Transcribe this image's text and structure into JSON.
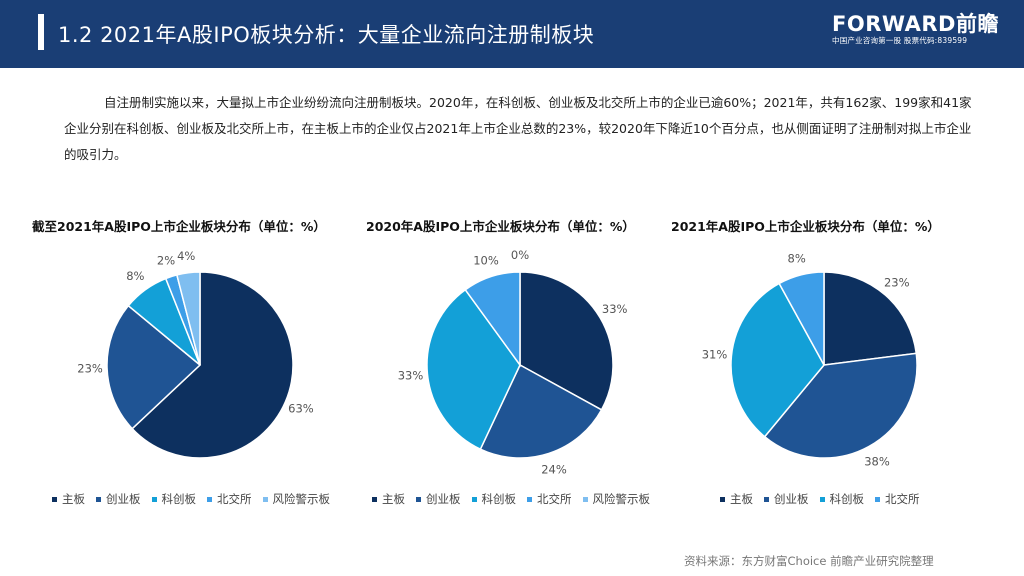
{
  "header": {
    "title": "1.2 2021年A股IPO板块分析：大量企业流向注册制板块",
    "logo_brand": "FORWARD前瞻",
    "logo_tagline": "中国产业咨询第一股 股票代码:839599"
  },
  "intro": "自注册制实施以来，大量拟上市企业纷纷流向注册制板块。2020年，在科创板、创业板及北交所上市的企业已逾60%；2021年，共有162家、199家和41家企业分别在科创板、创业板及北交所上市，在主板上市的企业仅占2021年上市企业总数的23%，较2020年下降近10个百分点，也从侧面证明了注册制对拟上市企业的吸引力。",
  "source": "资料来源：东方财富Choice 前瞻产业研究院整理",
  "colors": {
    "主板": "#0d305f",
    "创业板": "#1f5494",
    "科创板": "#13a0d7",
    "北交所": "#3d9ee8",
    "风险警示板": "#7fbef0"
  },
  "chart_data": [
    {
      "type": "pie",
      "title": "截至2021年A股IPO上市企业板块分布（单位：%）",
      "labels": [
        "主板",
        "创业板",
        "科创板",
        "北交所",
        "风险警示板"
      ],
      "values": [
        63,
        23,
        8,
        2,
        4
      ],
      "legend": [
        "主板",
        "创业板",
        "科创板",
        "北交所",
        "风险警示板"
      ]
    },
    {
      "type": "pie",
      "title": "2020年A股IPO上市企业板块分布（单位：%）",
      "labels": [
        "主板",
        "创业板",
        "科创板",
        "北交所",
        "风险警示板"
      ],
      "values": [
        33,
        24,
        33,
        10,
        0
      ],
      "legend": [
        "主板",
        "创业板",
        "科创板",
        "北交所",
        "风险警示板"
      ]
    },
    {
      "type": "pie",
      "title": "2021年A股IPO上市企业板块分布（单位：%）",
      "labels": [
        "主板",
        "创业板",
        "科创板",
        "北交所"
      ],
      "values": [
        23,
        38,
        31,
        8
      ],
      "legend": [
        "主板",
        "创业板",
        "科创板",
        "北交所"
      ]
    }
  ]
}
